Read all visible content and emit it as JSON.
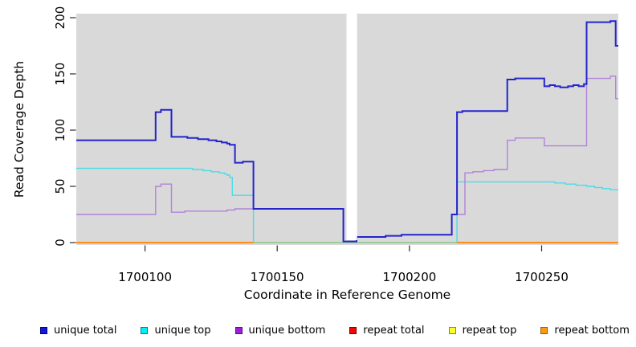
{
  "chart_data": {
    "type": "line",
    "title": "",
    "xlabel": "Coordinate in Reference Genome",
    "ylabel": "Read Coverage Depth",
    "xlim": [
      1700074,
      1700279
    ],
    "ylim": [
      0,
      200
    ],
    "x_ticks": [
      1700100,
      1700150,
      1700200,
      1700250
    ],
    "y_ticks": [
      0,
      50,
      100,
      150,
      200
    ],
    "grid": false,
    "panel_bg": "#d9d9d9",
    "masked_region": {
      "x1": 1700176.2,
      "x2": 1700180.2
    },
    "series": [
      {
        "name": "unique total",
        "color": "#2424cb",
        "width": 2,
        "step_points": [
          [
            1700074,
            91
          ],
          [
            1700104,
            116
          ],
          [
            1700106,
            118
          ],
          [
            1700110,
            94
          ],
          [
            1700116,
            93
          ],
          [
            1700120,
            92
          ],
          [
            1700124,
            91
          ],
          [
            1700127,
            90
          ],
          [
            1700129,
            89
          ],
          [
            1700131,
            88
          ],
          [
            1700132,
            87
          ],
          [
            1700134,
            71
          ],
          [
            1700137,
            72
          ],
          [
            1700141,
            30
          ],
          [
            1700175,
            1
          ],
          [
            1700180,
            5
          ],
          [
            1700191,
            6
          ],
          [
            1700197,
            7
          ],
          [
            1700216,
            25
          ],
          [
            1700218,
            116
          ],
          [
            1700220,
            117
          ],
          [
            1700237,
            145
          ],
          [
            1700240,
            146
          ],
          [
            1700251,
            139
          ],
          [
            1700253,
            140
          ],
          [
            1700255,
            139
          ],
          [
            1700257,
            138
          ],
          [
            1700260,
            139
          ],
          [
            1700262,
            140
          ],
          [
            1700264,
            139
          ],
          [
            1700266,
            141
          ],
          [
            1700267,
            196
          ],
          [
            1700276,
            197
          ],
          [
            1700278,
            175
          ],
          [
            1700279,
            175
          ]
        ]
      },
      {
        "name": "unique top",
        "color": "#4adce6",
        "width": 1.4,
        "step_points": [
          [
            1700074,
            66
          ],
          [
            1700118,
            65
          ],
          [
            1700122,
            64
          ],
          [
            1700125,
            63
          ],
          [
            1700128,
            62
          ],
          [
            1700130,
            61
          ],
          [
            1700131,
            60
          ],
          [
            1700132,
            58
          ],
          [
            1700133,
            42
          ],
          [
            1700141,
            0
          ],
          [
            1700218,
            54
          ],
          [
            1700255,
            53
          ],
          [
            1700259,
            52
          ],
          [
            1700263,
            51
          ],
          [
            1700267,
            50
          ],
          [
            1700270,
            49
          ],
          [
            1700273,
            48
          ],
          [
            1700276,
            47
          ],
          [
            1700279,
            47
          ]
        ]
      },
      {
        "name": "unique bottom",
        "color": "#b183d9",
        "width": 1.4,
        "step_points": [
          [
            1700074,
            25
          ],
          [
            1700104,
            50
          ],
          [
            1700106,
            52
          ],
          [
            1700110,
            27
          ],
          [
            1700115,
            28
          ],
          [
            1700131,
            29
          ],
          [
            1700134,
            30
          ],
          [
            1700141,
            30
          ],
          [
            1700175,
            1
          ],
          [
            1700180,
            5
          ],
          [
            1700191,
            6
          ],
          [
            1700197,
            7
          ],
          [
            1700216,
            25
          ],
          [
            1700221,
            62
          ],
          [
            1700224,
            63
          ],
          [
            1700228,
            64
          ],
          [
            1700232,
            65
          ],
          [
            1700237,
            91
          ],
          [
            1700240,
            93
          ],
          [
            1700251,
            86
          ],
          [
            1700267,
            146
          ],
          [
            1700276,
            148
          ],
          [
            1700278,
            128
          ],
          [
            1700279,
            128
          ]
        ]
      },
      {
        "name": "repeat total",
        "color": "#e01010",
        "width": 1.5,
        "step_points": [
          [
            1700074,
            0
          ],
          [
            1700279,
            0
          ]
        ]
      },
      {
        "name": "repeat top",
        "color": "#f5f53a",
        "width": 1.5,
        "step_points": [
          [
            1700074,
            0
          ],
          [
            1700279,
            0
          ]
        ]
      },
      {
        "name": "repeat bottom",
        "color": "#ff8c1a",
        "width": 2,
        "step_points": [
          [
            1700074,
            0
          ],
          [
            1700279,
            0
          ]
        ]
      }
    ],
    "zero_line_segments": [
      {
        "x1": 1700074,
        "x2": 1700141,
        "color": "#ff8c1a"
      },
      {
        "x1": 1700141,
        "x2": 1700218,
        "color": "#9ccc9c"
      },
      {
        "x1": 1700218,
        "x2": 1700279,
        "color": "#ff8c1a"
      }
    ],
    "draw_order": [
      "repeat total",
      "repeat top",
      "repeat bottom",
      "unique top",
      "@zero_segments",
      "unique bottom",
      "unique total"
    ],
    "legend": {
      "position": "bottom",
      "items": [
        {
          "label": "unique total",
          "fill": "#1515e0",
          "border": "#000080"
        },
        {
          "label": "unique top",
          "fill": "#00f0f5",
          "border": "#007a8a"
        },
        {
          "label": "unique bottom",
          "fill": "#9a1fd6",
          "border": "#5a0d80"
        },
        {
          "label": "repeat total",
          "fill": "#ee0808",
          "border": "#7a0000"
        },
        {
          "label": "repeat top",
          "fill": "#fdfd2a",
          "border": "#8a8a00"
        },
        {
          "label": "repeat bottom",
          "fill": "#ff9914",
          "border": "#9a5d00"
        }
      ]
    }
  }
}
